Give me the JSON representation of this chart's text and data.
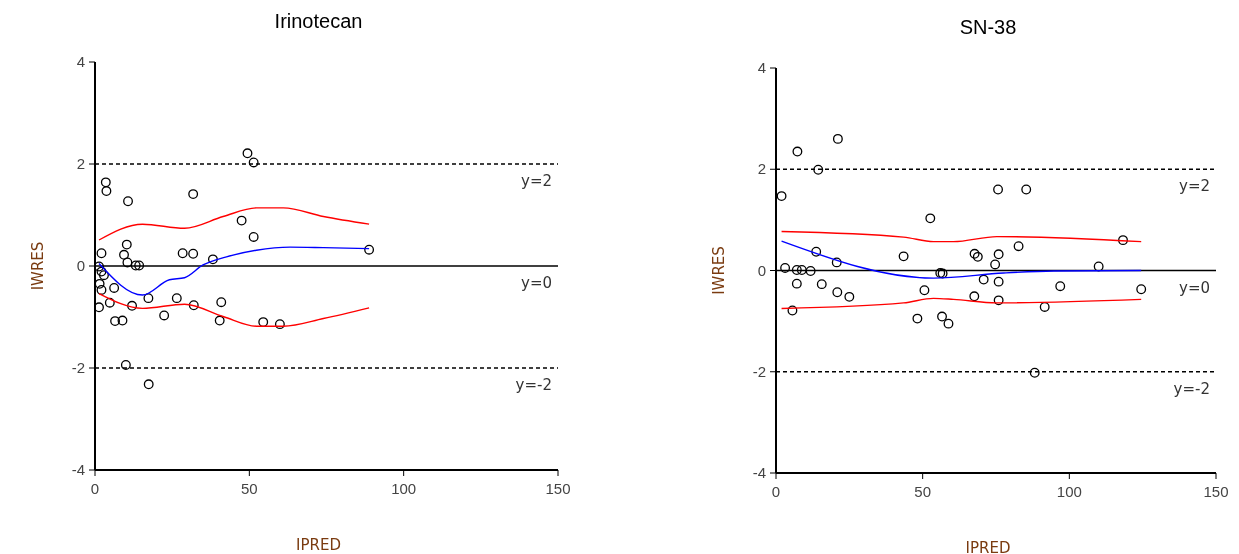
{
  "chart_data": [
    {
      "type": "scatter",
      "title": "Irinotecan",
      "xlabel": "IPRED",
      "ylabel": "IWRES",
      "xlim": [
        0,
        150
      ],
      "xticks": [
        0,
        50,
        100,
        150
      ],
      "ylim": [
        -4,
        4
      ],
      "yticks": [
        -4,
        -2,
        0,
        2,
        4
      ],
      "grid": false,
      "ref_lines": [
        {
          "axis": "y",
          "value": 2,
          "label": "y=2",
          "line_style": "dashed"
        },
        {
          "axis": "y",
          "value": 0,
          "label": "y=0",
          "line_style": "solid"
        },
        {
          "axis": "y",
          "value": -2,
          "label": "y=-2",
          "line_style": "dashed"
        }
      ],
      "series": [
        {
          "marker": "circle",
          "color": "#000000",
          "x": [
            49.4,
            51.4,
            3.5,
            3.7,
            10.7,
            31.8,
            47.5,
            51.4,
            2.1,
            10.3,
            9.4,
            10.5,
            13.2,
            14.3,
            28.4,
            31.8,
            38.2,
            88.8,
            1.3,
            2.1,
            2.9,
            1.5,
            2.1,
            6.2,
            4.8,
            1.3,
            6.5,
            8.9,
            12,
            17.3,
            26.5,
            22.4,
            32,
            40.9,
            40.4,
            54.5,
            59.9,
            10,
            17.4
          ],
          "values": [
            2.21,
            2.03,
            1.64,
            1.47,
            1.27,
            1.41,
            0.89,
            0.57,
            0.25,
            0.42,
            0.22,
            0.07,
            0.01,
            0.01,
            0.25,
            0.24,
            0.13,
            0.32,
            -0.01,
            -0.11,
            -0.18,
            -0.35,
            -0.47,
            -0.43,
            -0.72,
            -0.81,
            -1.08,
            -1.07,
            -0.78,
            -0.63,
            -0.63,
            -0.97,
            -0.77,
            -0.71,
            -1.07,
            -1.1,
            -1.14,
            -1.94,
            -2.32
          ]
        },
        {
          "type": "line",
          "color": "#0000ff",
          "x": [
            1.3,
            15.4,
            24.1,
            29,
            35,
            42.6,
            52.3,
            63.2,
            74,
            88.8
          ],
          "values": [
            0.05,
            -0.57,
            -0.27,
            -0.23,
            0.02,
            0.18,
            0.31,
            0.37,
            0.36,
            0.34
          ]
        },
        {
          "type": "line",
          "color": "#ff0000",
          "x": [
            1.3,
            15.4,
            29,
            41.5,
            52.3,
            61,
            74,
            88.8
          ],
          "values": [
            0.51,
            0.82,
            0.74,
            0.97,
            1.14,
            1.14,
            0.97,
            0.82
          ]
        },
        {
          "type": "line",
          "color": "#ff0000",
          "x": [
            1.3,
            15.4,
            29,
            41.5,
            52.3,
            61,
            74,
            88.8
          ],
          "values": [
            -0.54,
            -0.83,
            -0.75,
            -0.99,
            -1.18,
            -1.18,
            -1.03,
            -0.82
          ]
        }
      ]
    },
    {
      "type": "scatter",
      "title": "SN-38",
      "xlabel": "IPRED",
      "ylabel": "IWRES",
      "xlim": [
        0,
        150
      ],
      "xticks": [
        0,
        50,
        100,
        150
      ],
      "ylim": [
        -4,
        4
      ],
      "yticks": [
        -4,
        -2,
        0,
        2,
        4
      ],
      "grid": false,
      "ref_lines": [
        {
          "axis": "y",
          "value": 2,
          "label": "y=2",
          "line_style": "dashed"
        },
        {
          "axis": "y",
          "value": 0,
          "label": "y=0",
          "line_style": "solid"
        },
        {
          "axis": "y",
          "value": -2,
          "label": "y=-2",
          "line_style": "dashed"
        }
      ],
      "series": [
        {
          "marker": "circle",
          "color": "#000000",
          "x": [
            1.9,
            7.3,
            14.4,
            21.1,
            75.7,
            85.3,
            52.6,
            118.3,
            82.7,
            13.7,
            20.7,
            43.5,
            67.7,
            68.8,
            75.9,
            74.7,
            110,
            3.1,
            7.1,
            8.8,
            11.8,
            56,
            56.8,
            7.1,
            15.6,
            20.9,
            25,
            50.6,
            70.8,
            75.9,
            67.6,
            75.9,
            96.9,
            124.5,
            5.6,
            48.2,
            56.6,
            58.8,
            91.6,
            88.2
          ],
          "values": [
            1.47,
            2.35,
            1.99,
            2.6,
            1.6,
            1.6,
            1.03,
            0.6,
            0.48,
            0.37,
            0.16,
            0.28,
            0.33,
            0.27,
            0.32,
            0.12,
            0.08,
            0.05,
            0.01,
            0.01,
            -0.01,
            -0.05,
            -0.06,
            -0.26,
            -0.27,
            -0.43,
            -0.52,
            -0.39,
            -0.18,
            -0.22,
            -0.51,
            -0.59,
            -0.31,
            -0.37,
            -0.79,
            -0.95,
            -0.91,
            -1.05,
            -0.72,
            -2.02
          ]
        },
        {
          "type": "line",
          "color": "#0000ff",
          "x": [
            1.9,
            53.7,
            77.6,
            94.7,
            124.5
          ],
          "values": [
            0.58,
            -0.15,
            -0.05,
            -0.01,
            0
          ]
        },
        {
          "type": "line",
          "color": "#ff0000",
          "x": [
            1.9,
            43.5,
            53.7,
            60.5,
            75.3,
            124.5
          ],
          "values": [
            0.77,
            0.66,
            0.57,
            0.57,
            0.67,
            0.57
          ]
        },
        {
          "type": "line",
          "color": "#ff0000",
          "x": [
            1.9,
            43.5,
            53.7,
            60.5,
            75.3,
            124.5
          ],
          "values": [
            -0.75,
            -0.64,
            -0.55,
            -0.57,
            -0.64,
            -0.57
          ]
        }
      ]
    }
  ]
}
